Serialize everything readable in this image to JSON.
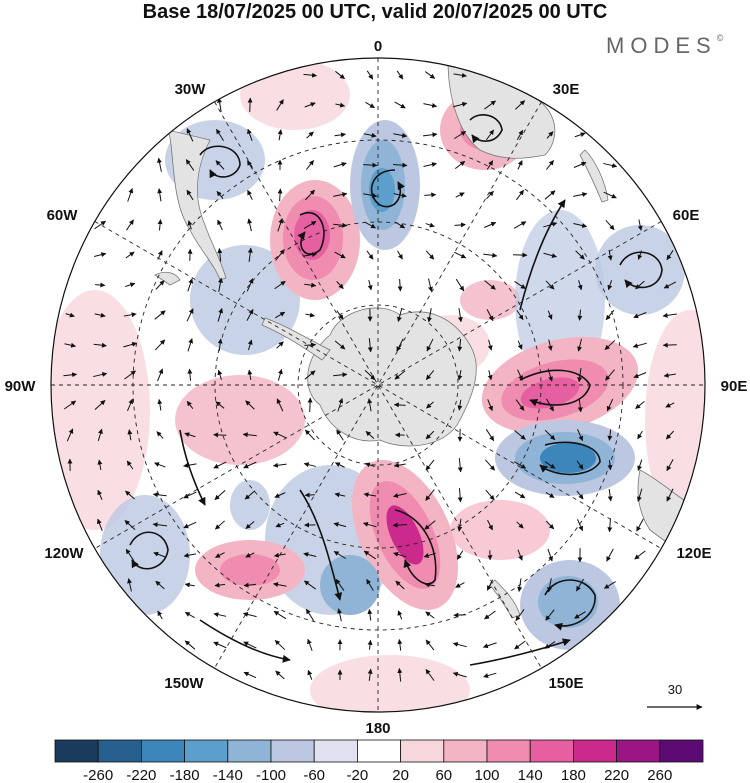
{
  "header": {
    "title": "Base 18/07/2025 00 UTC, valid 20/07/2025 00 UTC",
    "brand": "MODES",
    "brand_mark": "©"
  },
  "map": {
    "projection": "south-polar-stereographic",
    "lon_labels": {
      "top": "0",
      "top_right": "30E",
      "right_upper": "60E",
      "right": "90E",
      "right_lower": "120E",
      "bottom_right": "150E",
      "bottom": "180",
      "bottom_left": "150W",
      "left_lower": "120W",
      "left": "90W",
      "left_upper": "60W",
      "top_left": "30W"
    },
    "ref_vector_label": "30"
  },
  "colorbar": {
    "labels": [
      "-260",
      "-220",
      "-180",
      "-140",
      "-100",
      "-60",
      "-20",
      "20",
      "60",
      "100",
      "140",
      "180",
      "220",
      "260"
    ],
    "colors": [
      "#1a3b5c",
      "#27608f",
      "#3c86bb",
      "#5c9fcc",
      "#8fb4d6",
      "#bcc8e2",
      "#e1e1f0",
      "#ffffff",
      "#f7d7dc",
      "#f3b4c3",
      "#ef8cb0",
      "#e55fa1",
      "#cb2a8c",
      "#9a1685",
      "#5b0b73"
    ]
  },
  "colors": {
    "land": "#e3e3e3",
    "grid": "#222222",
    "coast": "#777777"
  }
}
